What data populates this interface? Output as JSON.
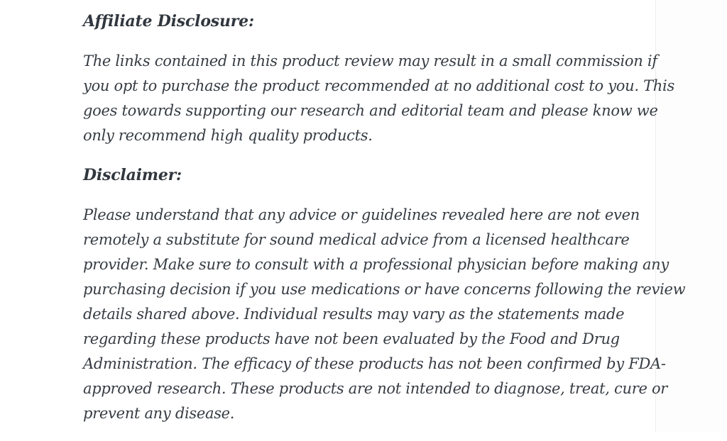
{
  "page": {
    "background": "#ffffff",
    "text_color": "#353b42",
    "heading_color": "#31373e",
    "edge_line_color": "#eeeeee"
  },
  "article": {
    "sections": [
      {
        "heading": "Affiliate Disclosure:",
        "body": "The links contained in this product review may result in a small commission if\nyou opt to purchase the product recommended at no additional cost to you. This\ngoes towards supporting our research and editorial team and please know we\nonly recommend high quality products."
      },
      {
        "heading": "Disclaimer:",
        "body": "Please understand that any advice or guidelines revealed here are not even\nremotely a substitute for sound medical advice from a licensed healthcare\nprovider. Make sure to consult with a professional physician before making any\npurchasing decision if you use medications or have concerns following the review\ndetails shared above. Individual results may vary as the statements made\nregarding these products have not been evaluated by the Food and Drug\nAdministration. The efficacy of these products has not been confirmed by FDA-\napproved research. These products are not intended to diagnose, treat, cure or\nprevent any disease."
      }
    ]
  }
}
